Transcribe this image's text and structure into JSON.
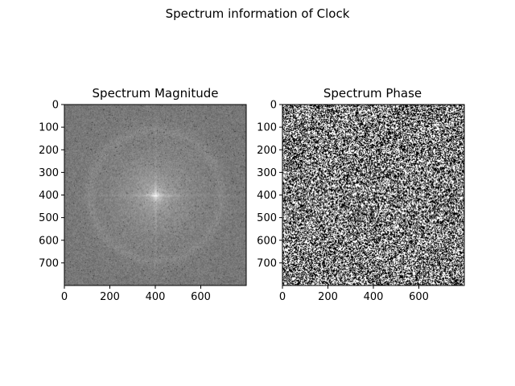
{
  "figure": {
    "suptitle": "Spectrum information of Clock"
  },
  "chart_data": [
    {
      "type": "heatmap",
      "title": "Spectrum Magnitude",
      "xlabel": "",
      "ylabel": "",
      "xlim": [
        0,
        800
      ],
      "ylim": [
        800,
        0
      ],
      "xticks": [
        0,
        200,
        400,
        600
      ],
      "yticks": [
        0,
        100,
        200,
        300,
        400,
        500,
        600,
        700
      ],
      "colormap": "gray",
      "center": [
        400,
        400
      ],
      "texture": "magnitude",
      "grid": false
    },
    {
      "type": "heatmap",
      "title": "Spectrum Phase",
      "xlabel": "",
      "ylabel": "",
      "xlim": [
        0,
        800
      ],
      "ylim": [
        800,
        0
      ],
      "xticks": [
        0,
        200,
        400,
        600
      ],
      "yticks": [
        0,
        100,
        200,
        300,
        400,
        500,
        600,
        700
      ],
      "colormap": "gray",
      "texture": "phase",
      "grid": false
    }
  ]
}
